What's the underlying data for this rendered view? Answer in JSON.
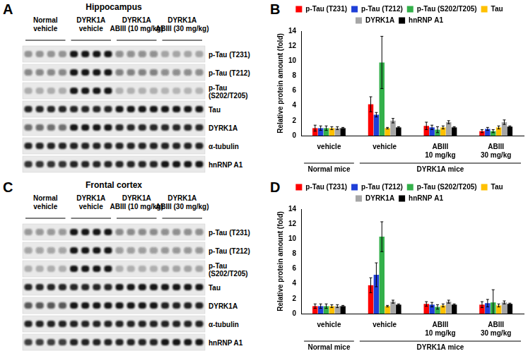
{
  "blots": [
    {
      "panel": "A",
      "title": "Hippocampus",
      "groups": [
        {
          "label": [
            "Normal",
            "vehicle"
          ],
          "lanes": 4
        },
        {
          "label": [
            "DYRK1A",
            "vehicle"
          ],
          "lanes": 4
        },
        {
          "label": [
            "DYRK1A",
            "ABIII (10 mg/kg)"
          ],
          "lanes": 4
        },
        {
          "label": [
            "DYRK1A",
            "ABIII (30 mg/kg)"
          ],
          "lanes": 4
        }
      ],
      "rows": [
        [
          "p-Tau (T231)"
        ],
        [
          "p-Tau (T212)"
        ],
        [
          "p-Tau",
          "(S202/T205)"
        ],
        [
          "Tau"
        ],
        [
          "DYRK1A"
        ],
        [
          "α-tubulin"
        ],
        [
          "hnRNP A1"
        ]
      ]
    },
    {
      "panel": "C",
      "title": "Frontal cortex",
      "groups": [
        {
          "label": [
            "Normal",
            "vehicle"
          ],
          "lanes": 4
        },
        {
          "label": [
            "DYRK1A",
            "vehicle"
          ],
          "lanes": 4
        },
        {
          "label": [
            "DYRK1A",
            "ABIII (10 mg/kg)"
          ],
          "lanes": 4
        },
        {
          "label": [
            "DYRK1A",
            "ABIII (30 mg/kg)"
          ],
          "lanes": 4
        }
      ],
      "rows": [
        [
          "p-Tau (T231)"
        ],
        [
          "p-Tau (T212)"
        ],
        [
          "p-Tau",
          "(S202/T205)"
        ],
        [
          "Tau"
        ],
        [
          "DYRK1A"
        ],
        [
          "α-tubulin"
        ],
        [
          "hnRNP A1"
        ]
      ]
    }
  ],
  "chart_data": [
    {
      "type": "bar",
      "panel": "B",
      "y_label": "Relative protein amount (fold)",
      "categories": [
        [
          "vehicle"
        ],
        [
          "vehicle"
        ],
        [
          "ABIII",
          "10 mg/kg"
        ],
        [
          "ABIII",
          "30 mg/kg"
        ]
      ],
      "groups": [
        {
          "label": "Normal mice",
          "count": 1
        },
        {
          "label": "DYRK1A mice",
          "count": 3
        }
      ],
      "series": [
        {
          "name": "p-Tau (T231)",
          "color": "#ff0000",
          "values": [
            1.0,
            4.2,
            1.3,
            0.6
          ],
          "errors": [
            0.4,
            1.0,
            0.5,
            0.2
          ]
        },
        {
          "name": "p-Tau (T212)",
          "color": "#1f3fd8",
          "values": [
            1.0,
            2.8,
            1.1,
            0.9
          ],
          "errors": [
            0.3,
            0.3,
            0.3,
            0.2
          ]
        },
        {
          "name": "p-Tau (S202/T205)",
          "color": "#33b04a",
          "values": [
            1.0,
            9.8,
            0.8,
            0.6
          ],
          "errors": [
            0.3,
            3.5,
            0.4,
            0.2
          ]
        },
        {
          "name": "Tau",
          "color": "#ffc000",
          "values": [
            1.0,
            1.0,
            1.1,
            1.1
          ],
          "errors": [
            0.2,
            0.1,
            0.2,
            0.2
          ]
        },
        {
          "name": "DYRK1A",
          "color": "#a6a6a6",
          "values": [
            1.0,
            2.0,
            1.8,
            1.8
          ],
          "errors": [
            0.2,
            0.3,
            0.2,
            0.3
          ]
        },
        {
          "name": "hnRNP A1",
          "color": "#000000",
          "values": [
            1.0,
            1.1,
            1.1,
            1.2
          ],
          "errors": [
            0.1,
            0.1,
            0.1,
            0.1
          ]
        }
      ],
      "ylim": [
        0,
        14
      ],
      "yticks": [
        0,
        2,
        4,
        6,
        8,
        10,
        12,
        14
      ],
      "grid": false,
      "legend": "top"
    },
    {
      "type": "bar",
      "panel": "D",
      "y_label": "Relative protein amount (fold)",
      "categories": [
        [
          "vehicle"
        ],
        [
          "vehicle"
        ],
        [
          "ABIII",
          "10 mg/kg"
        ],
        [
          "ABIII",
          "30 mg/kg"
        ]
      ],
      "groups": [
        {
          "label": "Normal mice",
          "count": 1
        },
        {
          "label": "DYRK1A mice",
          "count": 3
        }
      ],
      "series": [
        {
          "name": "p-Tau (T231)",
          "color": "#ff0000",
          "values": [
            1.0,
            3.8,
            1.3,
            1.2
          ],
          "errors": [
            0.3,
            1.0,
            0.3,
            0.4
          ]
        },
        {
          "name": "p-Tau (T212)",
          "color": "#1f3fd8",
          "values": [
            1.0,
            5.2,
            1.2,
            1.4
          ],
          "errors": [
            0.3,
            1.6,
            0.3,
            0.5
          ]
        },
        {
          "name": "p-Tau (S202/T205)",
          "color": "#33b04a",
          "values": [
            1.0,
            10.3,
            0.9,
            1.5
          ],
          "errors": [
            0.3,
            2.0,
            0.3,
            1.7
          ]
        },
        {
          "name": "Tau",
          "color": "#ffc000",
          "values": [
            1.0,
            1.0,
            1.1,
            1.1
          ],
          "errors": [
            0.2,
            0.1,
            0.2,
            0.2
          ]
        },
        {
          "name": "DYRK1A",
          "color": "#a6a6a6",
          "values": [
            1.0,
            1.6,
            1.6,
            1.5
          ],
          "errors": [
            0.2,
            0.2,
            0.2,
            0.2
          ]
        },
        {
          "name": "hnRNP A1",
          "color": "#000000",
          "values": [
            1.0,
            1.2,
            1.2,
            1.3
          ],
          "errors": [
            0.1,
            0.1,
            0.1,
            0.1
          ]
        }
      ],
      "ylim": [
        0,
        14
      ],
      "yticks": [
        0,
        2,
        4,
        6,
        8,
        10,
        12,
        14
      ],
      "grid": false,
      "legend": "top"
    }
  ]
}
